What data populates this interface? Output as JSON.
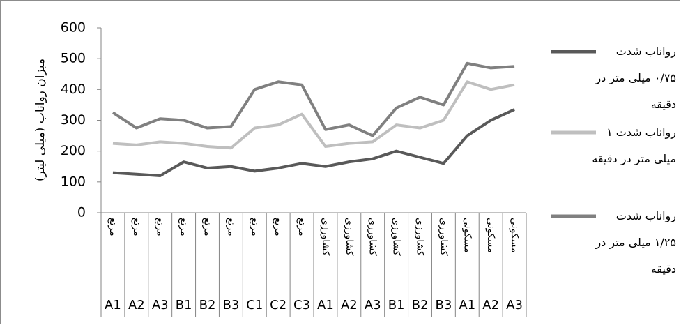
{
  "chart_data": {
    "type": "line",
    "y_label": "میزان رواناب (میلی لیتر)",
    "categories": [
      "A1",
      "A2",
      "A3",
      "B1",
      "B2",
      "B3",
      "C1",
      "C2",
      "C3",
      "A1",
      "A2",
      "A3",
      "B1",
      "B2",
      "B3",
      "A1",
      "A2",
      "A3"
    ],
    "category_groups": [
      "مرتع",
      "مرتع",
      "مرتع",
      "مرتع",
      "مرتع",
      "مرتع",
      "مرتع",
      "مرتع",
      "مرتع",
      "کشاورزی",
      "کشاورزی",
      "کشاورزی",
      "کشاورزی",
      "کشاورزی",
      "کشاورزی",
      "مسکونی",
      "مسکونی",
      "مسکونی"
    ],
    "series": [
      {
        "name": "رواناب شدت ۰/۷۵ میلی متر در دقیقه",
        "color": "#595959",
        "values": [
          130,
          125,
          120,
          165,
          145,
          150,
          135,
          145,
          160,
          150,
          165,
          175,
          200,
          180,
          160,
          250,
          300,
          335
        ]
      },
      {
        "name": "رواناب شدت ۱ میلی متر در دقیقه",
        "color": "#bfbfbf",
        "values": [
          225,
          220,
          230,
          225,
          215,
          210,
          275,
          285,
          320,
          215,
          225,
          230,
          285,
          275,
          300,
          425,
          400,
          415
        ]
      },
      {
        "name": "رواناب شدت ۱/۲۵ میلی متر در دقیقه",
        "color": "#808080",
        "values": [
          325,
          275,
          305,
          300,
          275,
          280,
          400,
          425,
          415,
          270,
          285,
          250,
          340,
          375,
          350,
          485,
          470,
          475
        ]
      }
    ],
    "ylim": [
      0,
      600
    ],
    "yticks": [
      0,
      100,
      200,
      300,
      400,
      500,
      600
    ],
    "grid": false,
    "legend": "right"
  }
}
